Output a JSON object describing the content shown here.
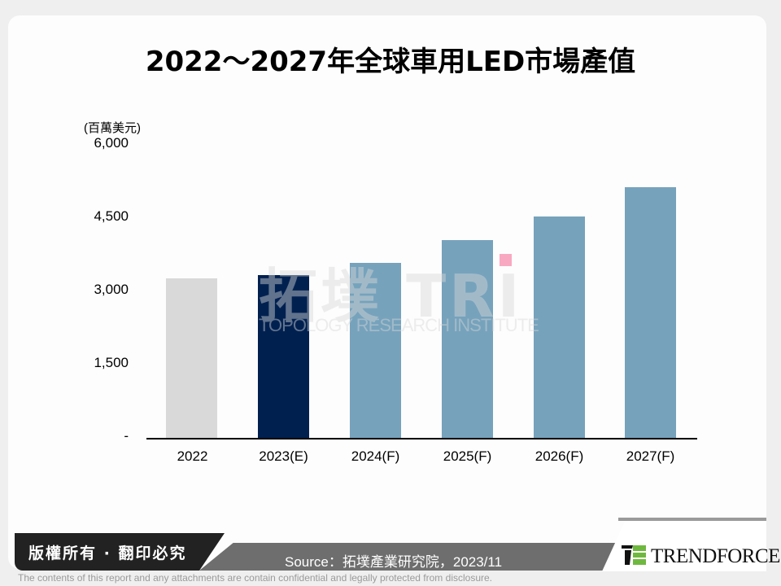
{
  "title": "2022～2027年全球車用LED市場產值",
  "chart_data": {
    "type": "bar",
    "title": "2022～2027年全球車用LED市場產值",
    "ylabel": "(百萬美元)",
    "xlabel": "",
    "categories": [
      "2022",
      "2023(E)",
      "2024(F)",
      "2025(F)",
      "2026(F)",
      "2027(F)"
    ],
    "values": [
      3250,
      3320,
      3570,
      4030,
      4510,
      5100
    ],
    "bar_colors": [
      "#d9d9d9",
      "#002050",
      "#76a2bc",
      "#76a2bc",
      "#76a2bc",
      "#76a2bc"
    ],
    "ylim": [
      0,
      6000
    ],
    "yticks": [
      0,
      1500,
      3000,
      4500,
      6000
    ],
    "ytick_labels": [
      "-",
      "1,500",
      "3,000",
      "4,500",
      "6,000"
    ],
    "grid": false,
    "legend": null
  },
  "axis": {
    "unit": "(百萬美元)",
    "ticks": [
      "6,000",
      "4,500",
      "3,000",
      "1,500",
      "-"
    ]
  },
  "watermark": {
    "big": "拓墣 TRI",
    "small": "TOPOLOGY RESEARCH INSTITUTE"
  },
  "footer": {
    "copyright": "版權所有 · 翻印必究",
    "source": "Source：拓墣產業研究院，2023/11",
    "brand": "TRENDFORCE",
    "disclaimer": "The contents of this report and any attachments are contain confidential and legally protected from disclosure."
  }
}
